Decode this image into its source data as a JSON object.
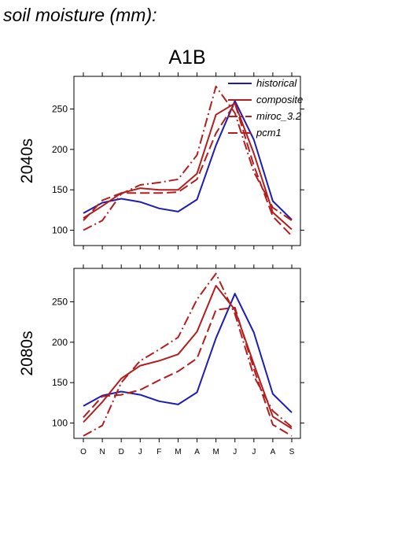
{
  "figure_title": "soil moisture (mm):",
  "scenario": "A1B",
  "colors": {
    "historical": "#1c1cb4",
    "model": "#b21e1e"
  },
  "chart_data": [
    {
      "type": "line",
      "panel_label": "2040s",
      "x": [
        "O",
        "N",
        "D",
        "J",
        "F",
        "M",
        "A",
        "M",
        "J",
        "J",
        "A",
        "S"
      ],
      "yticks": [
        100,
        150,
        200,
        250
      ],
      "ylim": [
        80,
        290
      ],
      "legend": "top-right",
      "series": [
        {
          "name": "historical",
          "style": "solid",
          "color": "#1c1cb4",
          "values": [
            121,
            134,
            139,
            135,
            127,
            123,
            138,
            205,
            260,
            212,
            136,
            113
          ]
        },
        {
          "name": "composite",
          "style": "solid",
          "color": "#b21e1e",
          "values": [
            115,
            130,
            146,
            152,
            150,
            150,
            170,
            243,
            257,
            195,
            122,
            101
          ]
        },
        {
          "name": "miroc_3.2",
          "style": "dashdot",
          "color": "#b21e1e",
          "values": [
            100,
            112,
            145,
            156,
            159,
            163,
            193,
            278,
            245,
            172,
            128,
            112
          ]
        },
        {
          "name": "pcm1",
          "style": "dash",
          "color": "#b21e1e",
          "values": [
            112,
            137,
            146,
            146,
            146,
            147,
            163,
            220,
            257,
            180,
            117,
            93
          ]
        }
      ]
    },
    {
      "type": "line",
      "panel_label": "2080s",
      "x": [
        "O",
        "N",
        "D",
        "J",
        "F",
        "M",
        "A",
        "M",
        "J",
        "J",
        "A",
        "S"
      ],
      "yticks": [
        100,
        150,
        200,
        250
      ],
      "ylim": [
        80,
        290
      ],
      "series": [
        {
          "name": "historical",
          "style": "solid",
          "color": "#1c1cb4",
          "values": [
            121,
            134,
            139,
            135,
            127,
            123,
            138,
            205,
            260,
            212,
            136,
            113
          ]
        },
        {
          "name": "composite",
          "style": "solid",
          "color": "#b21e1e",
          "values": [
            101,
            126,
            155,
            171,
            177,
            185,
            213,
            270,
            240,
            173,
            108,
            93
          ]
        },
        {
          "name": "miroc_3.2",
          "style": "dashdot",
          "color": "#b21e1e",
          "values": [
            84,
            97,
            150,
            177,
            191,
            206,
            253,
            285,
            235,
            158,
            115,
            95
          ]
        },
        {
          "name": "pcm1",
          "style": "dash",
          "color": "#b21e1e",
          "values": [
            107,
            133,
            135,
            141,
            153,
            164,
            180,
            240,
            243,
            167,
            98,
            84
          ]
        }
      ]
    }
  ]
}
